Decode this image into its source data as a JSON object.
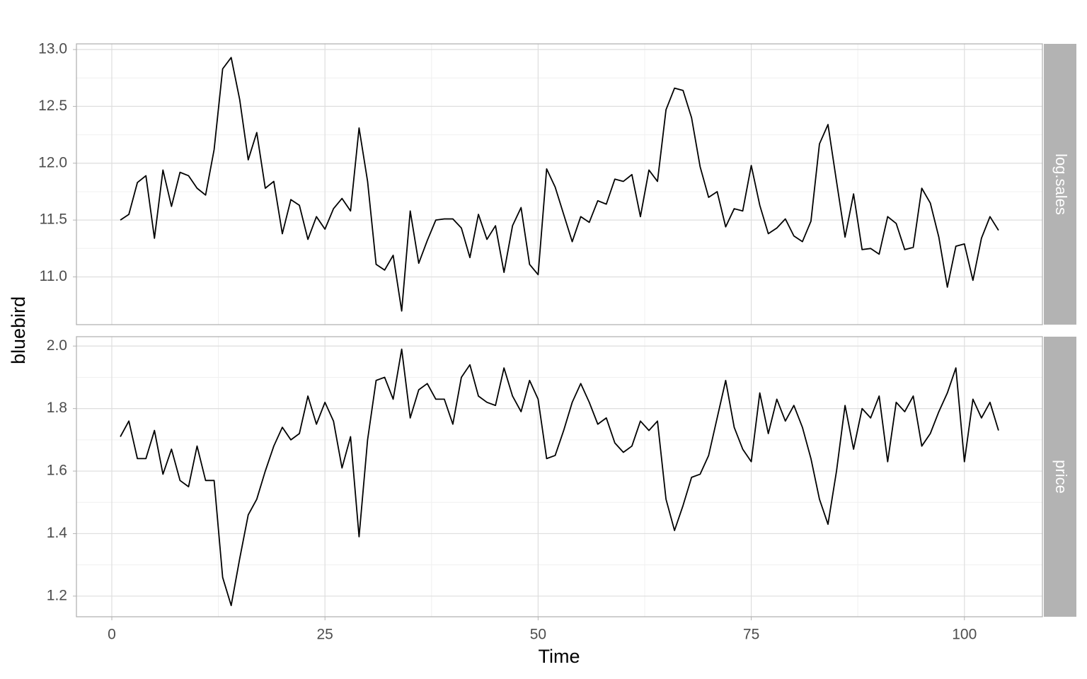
{
  "chart_data": {
    "type": "line",
    "xlabel": "Time",
    "ylabel": "bluebird",
    "color": "#000000",
    "grid": true,
    "x": [
      1,
      2,
      3,
      4,
      5,
      6,
      7,
      8,
      9,
      10,
      11,
      12,
      13,
      14,
      15,
      16,
      17,
      18,
      19,
      20,
      21,
      22,
      23,
      24,
      25,
      26,
      27,
      28,
      29,
      30,
      31,
      32,
      33,
      34,
      35,
      36,
      37,
      38,
      39,
      40,
      41,
      42,
      43,
      44,
      45,
      46,
      47,
      48,
      49,
      50,
      51,
      52,
      53,
      54,
      55,
      56,
      57,
      58,
      59,
      60,
      61,
      62,
      63,
      64,
      65,
      66,
      67,
      68,
      69,
      70,
      71,
      72,
      73,
      74,
      75,
      76,
      77,
      78,
      79,
      80,
      81,
      82,
      83,
      84,
      85,
      86,
      87,
      88,
      89,
      90,
      91,
      92,
      93,
      94,
      95,
      96,
      97,
      98,
      99,
      100,
      101,
      102,
      103,
      104
    ],
    "xlim": [
      -4.15,
      109.15
    ],
    "xticks": [
      0,
      25,
      50,
      75,
      100
    ],
    "facets": [
      {
        "strip": "log.sales",
        "ylim": [
          10.58,
          13.05
        ],
        "yticks": [
          {
            "value": 11,
            "label": "11.0"
          },
          11.5,
          {
            "value": 12,
            "label": "12.0"
          },
          12.5,
          {
            "value": 13,
            "label": "13.0"
          }
        ],
        "values": [
          11.5,
          11.55,
          11.83,
          11.89,
          11.34,
          11.94,
          11.62,
          11.92,
          11.89,
          11.78,
          11.72,
          12.12,
          12.83,
          12.93,
          12.56,
          12.03,
          12.27,
          11.78,
          11.84,
          11.38,
          11.68,
          11.63,
          11.33,
          11.53,
          11.42,
          11.6,
          11.69,
          11.58,
          12.31,
          11.84,
          11.11,
          11.06,
          11.19,
          10.7,
          11.58,
          11.12,
          11.32,
          11.5,
          11.51,
          11.51,
          11.43,
          11.17,
          11.55,
          11.33,
          11.45,
          11.04,
          11.45,
          11.61,
          11.11,
          11.02,
          11.95,
          11.79,
          11.55,
          11.31,
          11.53,
          11.48,
          11.67,
          11.64,
          11.86,
          11.84,
          11.9,
          11.53,
          11.94,
          11.84,
          12.47,
          12.66,
          12.64,
          12.4,
          11.97,
          11.7,
          11.75,
          11.44,
          11.6,
          11.58,
          11.98,
          11.63,
          11.38,
          11.43,
          11.51,
          11.36,
          11.31,
          11.49,
          12.17,
          12.34,
          11.84,
          11.35,
          11.73,
          11.24,
          11.25,
          11.2,
          11.53,
          11.47,
          11.24,
          11.26,
          11.78,
          11.65,
          11.35,
          10.91,
          11.27,
          11.29,
          10.97,
          11.34,
          11.53,
          11.41
        ]
      },
      {
        "strip": "price",
        "ylim": [
          1.134,
          2.03
        ],
        "yticks": [
          1.2,
          1.4,
          1.6,
          1.8,
          {
            "value": 2,
            "label": "2.0"
          }
        ],
        "values": [
          1.71,
          1.76,
          1.64,
          1.64,
          1.73,
          1.59,
          1.67,
          1.57,
          1.55,
          1.68,
          1.57,
          1.57,
          1.26,
          1.17,
          1.32,
          1.46,
          1.51,
          1.6,
          1.68,
          1.74,
          1.7,
          1.72,
          1.84,
          1.75,
          1.82,
          1.76,
          1.61,
          1.71,
          1.39,
          1.7,
          1.89,
          1.9,
          1.83,
          1.99,
          1.77,
          1.86,
          1.88,
          1.83,
          1.83,
          1.75,
          1.9,
          1.94,
          1.84,
          1.82,
          1.81,
          1.93,
          1.84,
          1.79,
          1.89,
          1.83,
          1.64,
          1.65,
          1.73,
          1.82,
          1.88,
          1.82,
          1.75,
          1.77,
          1.69,
          1.66,
          1.68,
          1.76,
          1.73,
          1.76,
          1.51,
          1.41,
          1.49,
          1.58,
          1.59,
          1.65,
          1.77,
          1.89,
          1.74,
          1.67,
          1.63,
          1.85,
          1.72,
          1.83,
          1.76,
          1.81,
          1.74,
          1.64,
          1.51,
          1.43,
          1.6,
          1.81,
          1.67,
          1.8,
          1.77,
          1.84,
          1.63,
          1.82,
          1.79,
          1.84,
          1.68,
          1.72,
          1.79,
          1.85,
          1.93,
          1.63,
          1.83,
          1.77,
          1.82,
          1.73
        ]
      }
    ]
  }
}
